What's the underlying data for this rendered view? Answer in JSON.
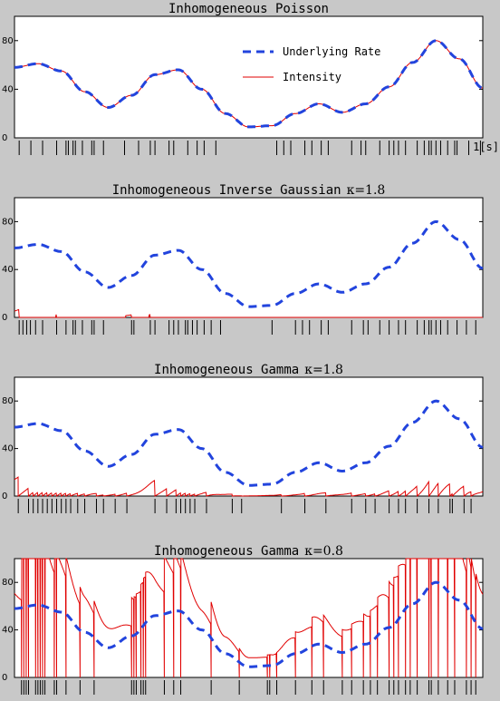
{
  "chart_data": [
    {
      "type": "line",
      "title": "Inhomogeneous Poisson",
      "ylim": [
        0,
        100
      ],
      "yticks": [
        "0",
        "40",
        "80"
      ],
      "xlim": [
        0,
        1
      ],
      "xlabel": "1[s]",
      "legend": {
        "placement": "top-right",
        "entries": [
          "Underlying Rate",
          "Intensity"
        ]
      },
      "series": [
        {
          "name": "Underlying Rate",
          "color": "#2244dd",
          "style": "dashed"
        },
        {
          "name": "Intensity",
          "color": "#e00000",
          "style": "solid"
        }
      ],
      "rate_x": [
        0,
        0.05,
        0.1,
        0.15,
        0.2,
        0.25,
        0.3,
        0.35,
        0.4,
        0.45,
        0.5,
        0.55,
        0.6,
        0.65,
        0.7,
        0.75,
        0.8,
        0.85,
        0.9,
        0.95,
        1.0
      ],
      "rate_y": [
        58,
        61,
        55,
        38,
        25,
        35,
        52,
        56,
        40,
        20,
        9,
        10,
        20,
        28,
        21,
        28,
        42,
        62,
        80,
        65,
        41
      ],
      "intensity_model": "equals_rate",
      "spikes": [
        0.01,
        0.035,
        0.06,
        0.09,
        0.11,
        0.115,
        0.125,
        0.13,
        0.145,
        0.165,
        0.17,
        0.19,
        0.235,
        0.265,
        0.29,
        0.3,
        0.33,
        0.34,
        0.37,
        0.39,
        0.405,
        0.43,
        0.56,
        0.575,
        0.59,
        0.62,
        0.635,
        0.655,
        0.67,
        0.72,
        0.74,
        0.75,
        0.78,
        0.8,
        0.81,
        0.82,
        0.835,
        0.86,
        0.875,
        0.885,
        0.89,
        0.9,
        0.91,
        0.925,
        0.94,
        0.945,
        0.97,
        0.995
      ]
    },
    {
      "type": "line",
      "title": "Inhomogeneous Inverse Gaussian",
      "kappa_label": "κ=1.8",
      "ylim": [
        0,
        100
      ],
      "yticks": [
        "0",
        "40",
        "80"
      ],
      "xlim": [
        0,
        1
      ],
      "series": [
        {
          "name": "Underlying Rate",
          "color": "#2244dd",
          "style": "dashed"
        },
        {
          "name": "Intensity",
          "color": "#e00000",
          "style": "solid"
        }
      ],
      "rate_x": [
        0,
        0.05,
        0.1,
        0.15,
        0.2,
        0.25,
        0.3,
        0.35,
        0.4,
        0.45,
        0.5,
        0.55,
        0.6,
        0.65,
        0.7,
        0.75,
        0.8,
        0.85,
        0.9,
        0.95,
        1.0
      ],
      "rate_y": [
        58,
        61,
        55,
        38,
        25,
        35,
        52,
        56,
        40,
        20,
        9,
        10,
        20,
        28,
        21,
        28,
        42,
        62,
        80,
        65,
        41
      ],
      "intensity_model": "hazard_ig",
      "spikes": [
        0.01,
        0.018,
        0.026,
        0.034,
        0.045,
        0.06,
        0.09,
        0.11,
        0.125,
        0.13,
        0.145,
        0.165,
        0.17,
        0.19,
        0.25,
        0.255,
        0.29,
        0.3,
        0.33,
        0.34,
        0.35,
        0.365,
        0.37,
        0.38,
        0.39,
        0.405,
        0.42,
        0.44,
        0.55,
        0.6,
        0.615,
        0.63,
        0.655,
        0.67,
        0.72,
        0.745,
        0.755,
        0.78,
        0.8,
        0.82,
        0.835,
        0.86,
        0.875,
        0.885,
        0.89,
        0.9,
        0.91,
        0.925,
        0.945,
        0.965,
        0.985
      ]
    },
    {
      "type": "line",
      "title": "Inhomogeneous Gamma",
      "kappa_label": "κ=1.8",
      "ylim": [
        0,
        100
      ],
      "yticks": [
        "0",
        "40",
        "80"
      ],
      "xlim": [
        0,
        1
      ],
      "series": [
        {
          "name": "Underlying Rate",
          "color": "#2244dd",
          "style": "dashed"
        },
        {
          "name": "Intensity",
          "color": "#e00000",
          "style": "solid"
        }
      ],
      "rate_x": [
        0,
        0.05,
        0.1,
        0.15,
        0.2,
        0.25,
        0.3,
        0.35,
        0.4,
        0.45,
        0.5,
        0.55,
        0.6,
        0.65,
        0.7,
        0.75,
        0.8,
        0.85,
        0.9,
        0.95,
        1.0
      ],
      "rate_y": [
        58,
        61,
        55,
        38,
        25,
        35,
        52,
        56,
        40,
        20,
        9,
        10,
        20,
        28,
        21,
        28,
        42,
        62,
        80,
        65,
        41
      ],
      "intensity_model": "hazard_gamma",
      "spikes": [
        0.008,
        0.03,
        0.04,
        0.05,
        0.06,
        0.07,
        0.08,
        0.09,
        0.1,
        0.11,
        0.12,
        0.135,
        0.15,
        0.175,
        0.19,
        0.215,
        0.24,
        0.3,
        0.325,
        0.345,
        0.355,
        0.365,
        0.375,
        0.385,
        0.41,
        0.465,
        0.485,
        0.57,
        0.62,
        0.665,
        0.72,
        0.75,
        0.77,
        0.8,
        0.82,
        0.835,
        0.86,
        0.885,
        0.905,
        0.93,
        0.935,
        0.96,
        0.975
      ]
    },
    {
      "type": "line",
      "title": "Inhomogeneous Gamma",
      "kappa_label": "κ=0.8",
      "ylim": [
        0,
        100
      ],
      "yticks": [
        "0",
        "40",
        "80"
      ],
      "xlim": [
        0,
        1
      ],
      "series": [
        {
          "name": "Underlying Rate",
          "color": "#2244dd",
          "style": "dashed"
        },
        {
          "name": "Intensity",
          "color": "#e00000",
          "style": "solid"
        }
      ],
      "rate_x": [
        0,
        0.05,
        0.1,
        0.15,
        0.2,
        0.25,
        0.3,
        0.35,
        0.4,
        0.45,
        0.5,
        0.55,
        0.6,
        0.65,
        0.7,
        0.75,
        0.8,
        0.85,
        0.9,
        0.95,
        1.0
      ],
      "rate_y": [
        58,
        61,
        55,
        38,
        25,
        35,
        52,
        56,
        40,
        20,
        9,
        10,
        20,
        28,
        21,
        28,
        42,
        62,
        80,
        65,
        41
      ],
      "intensity_model": "hazard_gamma_low",
      "spikes": [
        0.015,
        0.02,
        0.025,
        0.03,
        0.045,
        0.05,
        0.055,
        0.06,
        0.065,
        0.085,
        0.09,
        0.11,
        0.14,
        0.17,
        0.25,
        0.255,
        0.26,
        0.27,
        0.275,
        0.28,
        0.32,
        0.34,
        0.355,
        0.42,
        0.48,
        0.54,
        0.545,
        0.56,
        0.6,
        0.635,
        0.66,
        0.7,
        0.72,
        0.745,
        0.76,
        0.775,
        0.8,
        0.81,
        0.82,
        0.835,
        0.845,
        0.86,
        0.885,
        0.89,
        0.905,
        0.925,
        0.94,
        0.965,
        0.975,
        0.985
      ]
    }
  ]
}
